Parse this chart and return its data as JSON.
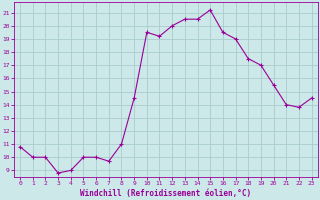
{
  "x": [
    0,
    1,
    2,
    3,
    4,
    5,
    6,
    7,
    8,
    9,
    10,
    11,
    12,
    13,
    14,
    15,
    16,
    17,
    18,
    19,
    20,
    21,
    22,
    23
  ],
  "y": [
    10.8,
    10.0,
    10.0,
    8.8,
    9.0,
    10.0,
    10.0,
    9.7,
    11.0,
    14.5,
    19.5,
    19.2,
    20.0,
    20.5,
    20.5,
    21.2,
    19.5,
    19.0,
    17.5,
    17.0,
    15.5,
    14.0,
    13.8,
    14.5
  ],
  "line_color": "#990099",
  "marker": "+",
  "bg_color": "#cce8e8",
  "grid_color": "#aacccc",
  "xlabel": "Windchill (Refroidissement éolien,°C)",
  "xlabel_color": "#990099",
  "ylabel_ticks": [
    9,
    10,
    11,
    12,
    13,
    14,
    15,
    16,
    17,
    18,
    19,
    20,
    21
  ],
  "ylim": [
    8.5,
    21.8
  ],
  "xlim": [
    -0.5,
    23.5
  ],
  "xtick_labels": [
    "0",
    "1",
    "2",
    "3",
    "4",
    "5",
    "6",
    "7",
    "8",
    "9",
    "10",
    "11",
    "12",
    "13",
    "14",
    "15",
    "16",
    "17",
    "18",
    "19",
    "20",
    "21",
    "22",
    "23"
  ]
}
